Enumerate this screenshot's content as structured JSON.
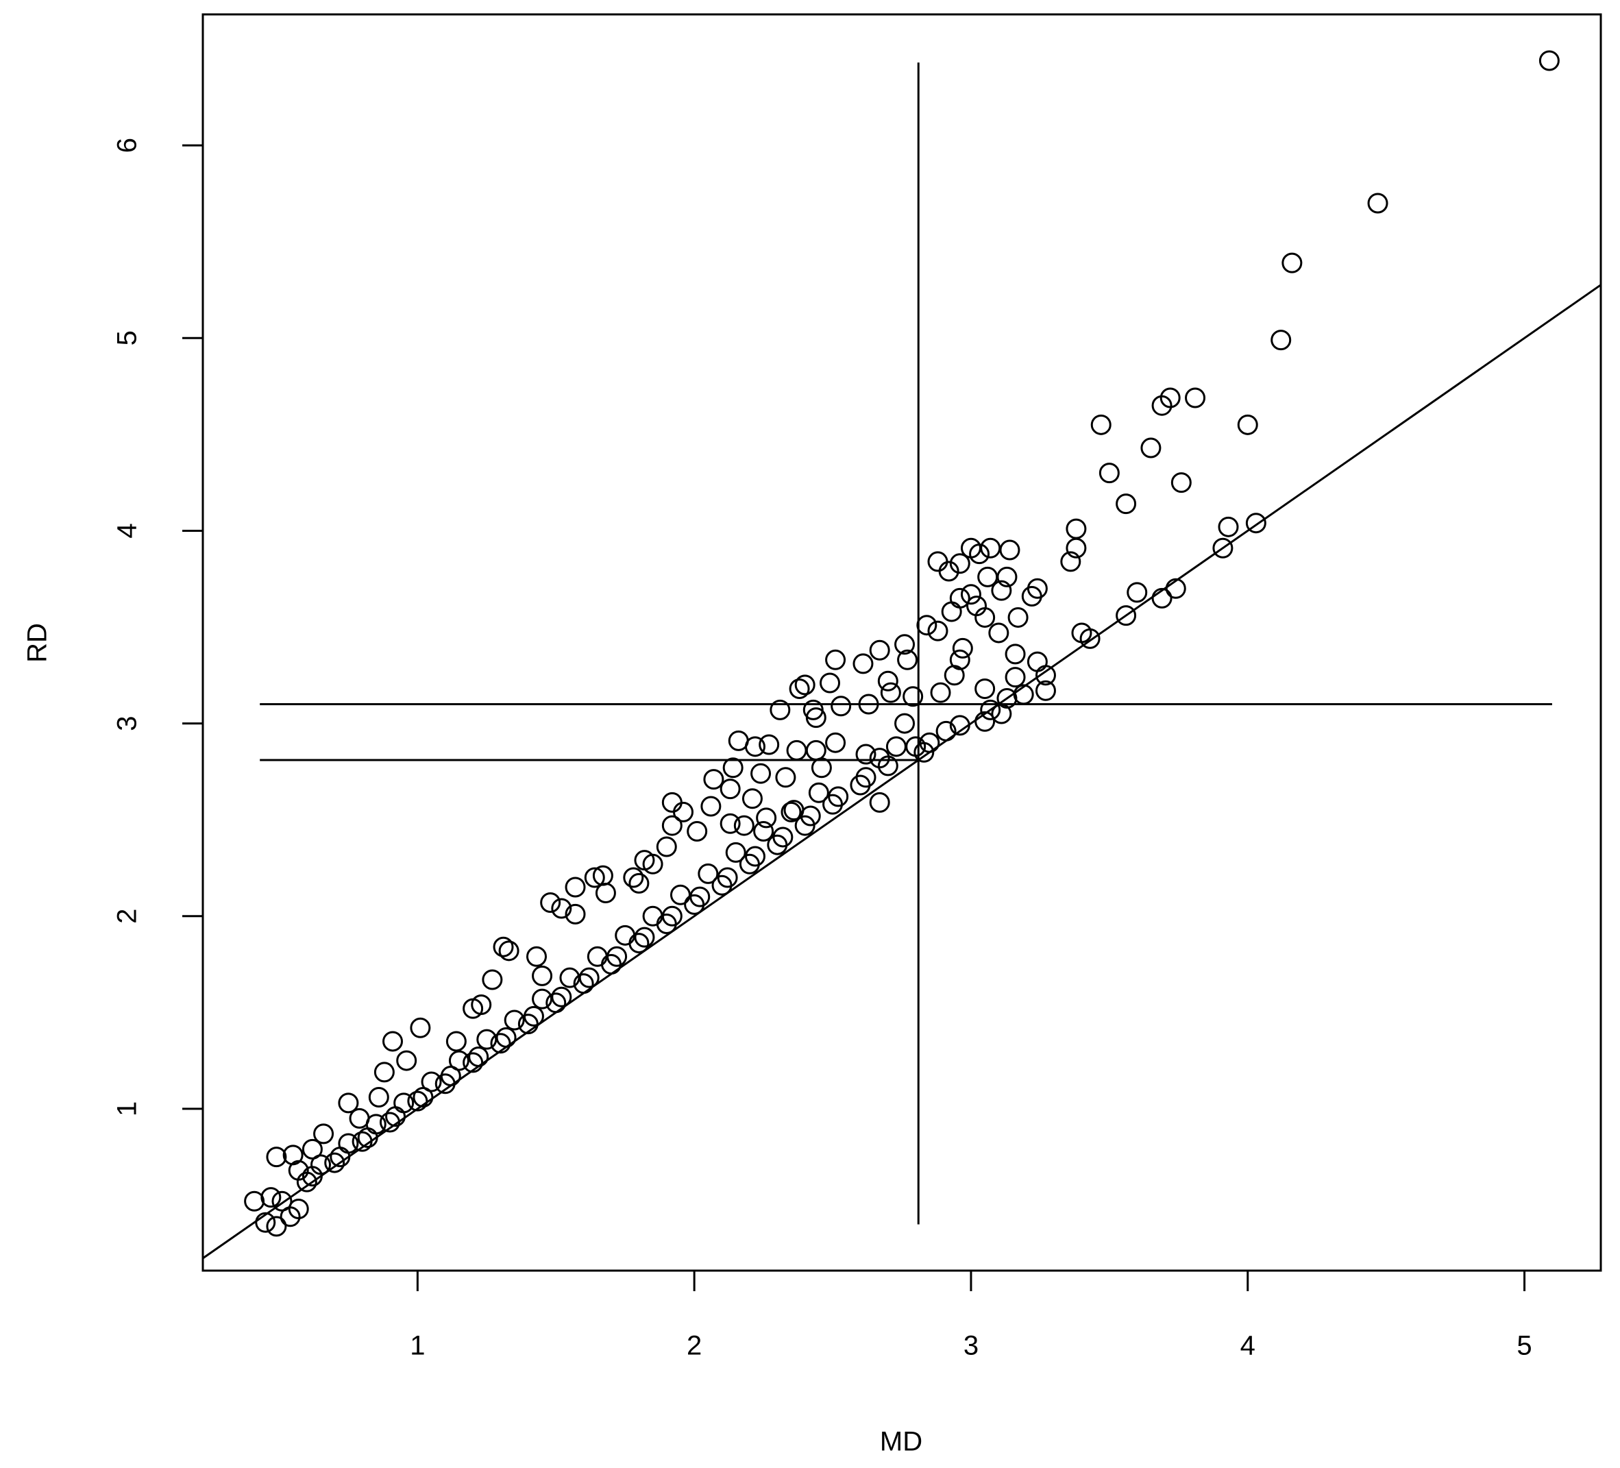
{
  "chart_data": {
    "type": "scatter",
    "x_label": "MD",
    "y_label": "RD",
    "xlim": [
      0.224,
      5.276
    ],
    "ylim": [
      0.16,
      6.68
    ],
    "xticks": [
      1,
      2,
      3,
      4,
      5
    ],
    "yticks": [
      1,
      2,
      3,
      4,
      5,
      6
    ],
    "grid": false,
    "series": [
      {
        "color": "#000000",
        "x": [
          5.09,
          4.47,
          4.16,
          4.12,
          3.81,
          3.72,
          3.69,
          4.0,
          3.47,
          3.65,
          3.5,
          3.76,
          3.56,
          3.38,
          4.03,
          3.93,
          3.91,
          3.38,
          3.36,
          3.74,
          3.69,
          3.6,
          3.56,
          3.4,
          3.43,
          2.88,
          3.0,
          3.07,
          3.14,
          3.03,
          2.96,
          2.92,
          3.13,
          3.06,
          3.24,
          3.22,
          3.11,
          3.0,
          2.96,
          3.02,
          2.93,
          3.17,
          3.05,
          2.84,
          2.88,
          3.1,
          2.97,
          3.16,
          2.96,
          2.76,
          2.67,
          2.77,
          3.24,
          2.51,
          2.61,
          2.94,
          3.27,
          3.16,
          2.7,
          2.49,
          2.38,
          2.4,
          3.05,
          2.71,
          2.89,
          3.27,
          3.19,
          3.13,
          2.79,
          2.31,
          2.43,
          2.53,
          2.63,
          3.07,
          3.11,
          3.05,
          2.76,
          2.44,
          2.96,
          2.91,
          2.85,
          2.83,
          2.73,
          2.51,
          2.44,
          2.16,
          2.22,
          2.27,
          2.37,
          2.62,
          2.67,
          2.46,
          2.14,
          2.24,
          2.33,
          2.07,
          2.13,
          2.21,
          2.67,
          2.26,
          2.06,
          2.36,
          1.92,
          1.92,
          2.01,
          2.13,
          2.18,
          1.96,
          1.9,
          1.82,
          1.85,
          1.78,
          1.64,
          1.67,
          1.8,
          1.57,
          1.68,
          1.48,
          1.57,
          1.52,
          1.31,
          1.33,
          1.43,
          1.27,
          1.45,
          1.23,
          1.2,
          1.14,
          1.01,
          0.91,
          0.96,
          0.88,
          0.75,
          0.86,
          0.79,
          0.66,
          0.49,
          0.55,
          0.62,
          0.57,
          0.41,
          0.47,
          0.51,
          0.45,
          0.49,
          0.54,
          0.57,
          0.6,
          0.7,
          0.8,
          0.9,
          1.0,
          1.1,
          1.2,
          1.3,
          1.4,
          1.5,
          1.6,
          1.7,
          1.8,
          1.9,
          2.0,
          2.1,
          2.2,
          2.3,
          2.4,
          2.5,
          2.6,
          2.7,
          2.8,
          0.65,
          0.75,
          0.85,
          0.95,
          1.05,
          1.15,
          1.25,
          1.35,
          1.45,
          1.55,
          1.65,
          1.75,
          1.85,
          1.95,
          2.05,
          2.15,
          2.25,
          2.35,
          2.45,
          0.62,
          0.72,
          0.82,
          0.92,
          1.02,
          1.12,
          1.22,
          1.32,
          1.42,
          1.52,
          1.62,
          1.72,
          1.82,
          1.92,
          2.02,
          2.12,
          2.22,
          2.32,
          2.42,
          2.52,
          2.62
        ],
        "values": [
          6.44,
          5.7,
          5.39,
          4.99,
          4.69,
          4.69,
          4.65,
          4.55,
          4.55,
          4.43,
          4.3,
          4.25,
          4.14,
          4.01,
          4.04,
          4.02,
          3.91,
          3.91,
          3.84,
          3.7,
          3.65,
          3.68,
          3.56,
          3.47,
          3.44,
          3.84,
          3.91,
          3.91,
          3.9,
          3.88,
          3.83,
          3.79,
          3.76,
          3.76,
          3.7,
          3.66,
          3.69,
          3.67,
          3.65,
          3.61,
          3.58,
          3.55,
          3.55,
          3.51,
          3.48,
          3.47,
          3.39,
          3.36,
          3.33,
          3.41,
          3.38,
          3.33,
          3.32,
          3.33,
          3.31,
          3.25,
          3.25,
          3.24,
          3.22,
          3.21,
          3.18,
          3.2,
          3.18,
          3.16,
          3.16,
          3.17,
          3.15,
          3.13,
          3.14,
          3.07,
          3.07,
          3.09,
          3.1,
          3.07,
          3.05,
          3.01,
          3.0,
          3.03,
          2.99,
          2.96,
          2.9,
          2.85,
          2.88,
          2.9,
          2.86,
          2.91,
          2.88,
          2.89,
          2.86,
          2.84,
          2.82,
          2.77,
          2.77,
          2.74,
          2.72,
          2.71,
          2.66,
          2.61,
          2.59,
          2.51,
          2.57,
          2.55,
          2.59,
          2.47,
          2.44,
          2.48,
          2.47,
          2.54,
          2.36,
          2.29,
          2.27,
          2.2,
          2.2,
          2.21,
          2.17,
          2.15,
          2.12,
          2.07,
          2.01,
          2.04,
          1.84,
          1.82,
          1.79,
          1.67,
          1.69,
          1.54,
          1.52,
          1.35,
          1.42,
          1.35,
          1.25,
          1.19,
          1.03,
          1.06,
          0.95,
          0.87,
          0.75,
          0.76,
          0.79,
          0.68,
          0.52,
          0.54,
          0.52,
          0.41,
          0.39,
          0.44,
          0.48,
          0.62,
          0.72,
          0.83,
          0.93,
          1.04,
          1.13,
          1.24,
          1.34,
          1.44,
          1.55,
          1.65,
          1.75,
          1.86,
          1.96,
          2.06,
          2.16,
          2.27,
          2.37,
          2.47,
          2.58,
          2.68,
          2.78,
          2.88,
          0.71,
          0.82,
          0.92,
          1.03,
          1.14,
          1.25,
          1.36,
          1.46,
          1.57,
          1.68,
          1.79,
          1.9,
          2.0,
          2.11,
          2.22,
          2.33,
          2.44,
          2.54,
          2.64,
          0.65,
          0.75,
          0.85,
          0.96,
          1.06,
          1.17,
          1.27,
          1.37,
          1.48,
          1.58,
          1.68,
          1.79,
          1.89,
          2.0,
          2.1,
          2.2,
          2.31,
          2.41,
          2.52,
          2.62,
          2.72
        ]
      }
    ],
    "reference_lines": [
      {
        "x": [
          2.81,
          2.81
        ],
        "y": [
          0.4,
          6.43
        ]
      },
      {
        "x": [
          0.43,
          5.1
        ],
        "y": [
          3.1,
          3.1
        ]
      },
      {
        "x": [
          0.43,
          2.81
        ],
        "y": [
          2.81,
          2.81
        ]
      }
    ],
    "abline": {
      "intercept": 0,
      "slope": 1
    }
  }
}
